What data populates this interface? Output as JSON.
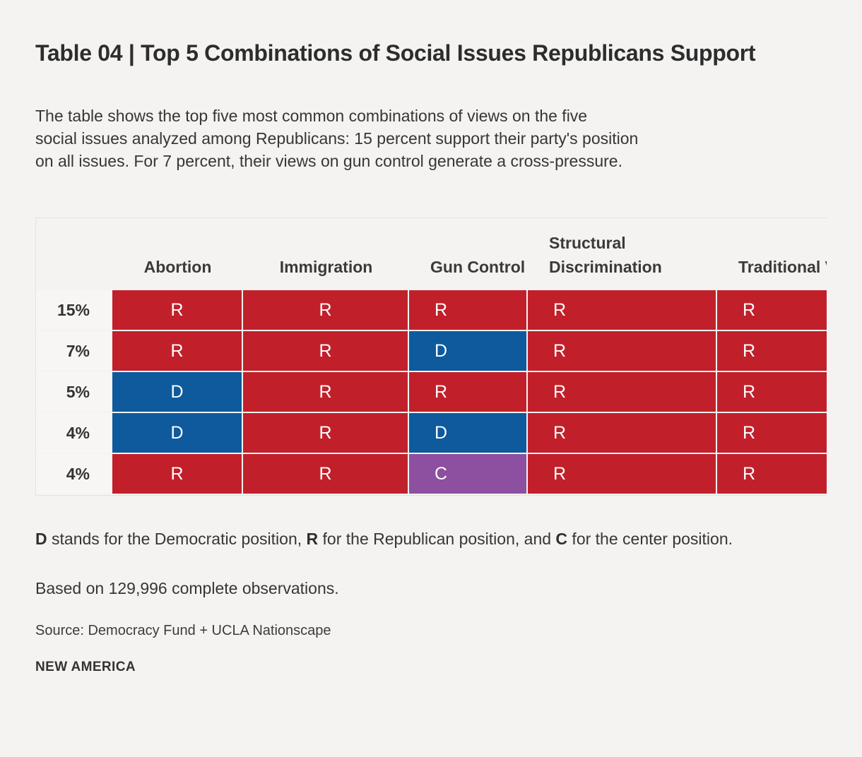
{
  "title": "Table 04 | Top 5 Combinations of Social Issues Republicans Support",
  "description_lines": [
    "The table shows the top five most common combinations of views on the five",
    "social issues analyzed among Republicans: 15 percent support their party's position",
    "on all issues. For 7 percent, their views on gun control generate a cross-pressure."
  ],
  "chart_data": {
    "type": "table",
    "title": "Table 04 | Top 5 Combinations of Social Issues Republicans Support",
    "columns": [
      "Abortion",
      "Immigration",
      "Gun Control",
      "Structural Discrimination",
      "Traditional Values"
    ],
    "rows": [
      {
        "share": "15%",
        "values": [
          "R",
          "R",
          "R",
          "R",
          "R"
        ]
      },
      {
        "share": "7%",
        "values": [
          "R",
          "R",
          "D",
          "R",
          "R"
        ]
      },
      {
        "share": "5%",
        "values": [
          "D",
          "R",
          "R",
          "R",
          "R"
        ]
      },
      {
        "share": "4%",
        "values": [
          "D",
          "R",
          "D",
          "R",
          "R"
        ]
      },
      {
        "share": "4%",
        "values": [
          "R",
          "R",
          "C",
          "R",
          "R"
        ]
      }
    ],
    "legend": {
      "D": "Democratic position",
      "R": "Republican position",
      "C": "Center position"
    },
    "colors": {
      "R": "#c1202b",
      "D": "#0e5a9d",
      "C": "#8d4f9f"
    }
  },
  "footnotes": {
    "legend_segments": [
      {
        "text": "D",
        "bold": true
      },
      {
        "text": " stands for the Democratic position, ",
        "bold": false
      },
      {
        "text": "R",
        "bold": true
      },
      {
        "text": " for the Republican position, and ",
        "bold": false
      },
      {
        "text": "C",
        "bold": true
      },
      {
        "text": " for the center position.",
        "bold": false
      }
    ],
    "observations": "Based on 129,996 complete observations.",
    "source": "Source: Democracy Fund + UCLA Nationscape",
    "org": "NEW AMERICA"
  }
}
